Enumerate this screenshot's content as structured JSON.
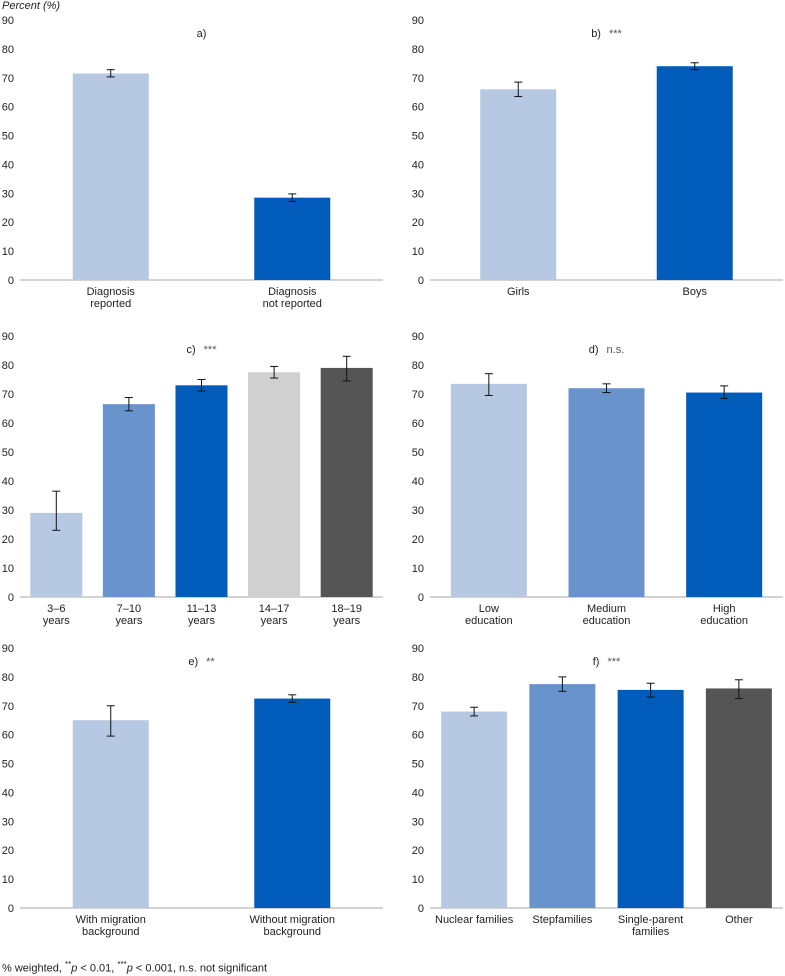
{
  "y_axis_title": "Percent (%)",
  "footnote": {
    "part1": "% weighted, ",
    "sup1": "**",
    "p1": "p",
    "part2": " < 0.01, ",
    "sup2": "***",
    "p2": "p",
    "part3": " < 0.001, n.s. not significant"
  },
  "colors": {
    "light_blue": "#b7c8e2",
    "mid_blue": "#6893cc",
    "dark_blue": "#005bbb",
    "light_gray": "#d0d0d0",
    "dark_gray": "#555555",
    "axis": "#a6a6a6",
    "text": "#222222"
  },
  "chart_data": [
    {
      "panel": "a",
      "type": "bar",
      "label": "a)",
      "significance": "",
      "ylim": [
        0,
        90
      ],
      "yticks": [
        0,
        10,
        20,
        30,
        40,
        50,
        60,
        70,
        80,
        90
      ],
      "categories": [
        [
          "Diagnosis",
          "reported"
        ],
        [
          "Diagnosis",
          "not reported"
        ]
      ],
      "values": [
        71.5,
        28.5
      ],
      "errors": [
        [
          70.3,
          72.8
        ],
        [
          27.2,
          29.8
        ]
      ],
      "colors": [
        "light_blue",
        "dark_blue"
      ]
    },
    {
      "panel": "b",
      "type": "bar",
      "label": "b)",
      "significance": "***",
      "ylim": [
        0,
        90
      ],
      "yticks": [
        0,
        10,
        20,
        30,
        40,
        50,
        60,
        70,
        80,
        90
      ],
      "categories": [
        [
          "Girls"
        ],
        [
          "Boys"
        ]
      ],
      "values": [
        66,
        74
      ],
      "errors": [
        [
          63.5,
          68.5
        ],
        [
          72.8,
          75.2
        ]
      ],
      "colors": [
        "light_blue",
        "dark_blue"
      ]
    },
    {
      "panel": "c",
      "type": "bar",
      "label": "c)",
      "significance": "***",
      "ylim": [
        0,
        90
      ],
      "yticks": [
        0,
        10,
        20,
        30,
        40,
        50,
        60,
        70,
        80,
        90
      ],
      "categories": [
        [
          "3–6",
          "years"
        ],
        [
          "7–10",
          "years"
        ],
        [
          "11–13",
          "years"
        ],
        [
          "14–17",
          "years"
        ],
        [
          "18–19",
          "years"
        ]
      ],
      "values": [
        29,
        66.5,
        73,
        77.5,
        79
      ],
      "errors": [
        [
          23,
          36.5
        ],
        [
          64.2,
          68.8
        ],
        [
          71,
          75
        ],
        [
          75.5,
          79.5
        ],
        [
          74.5,
          83
        ]
      ],
      "colors": [
        "light_blue",
        "mid_blue",
        "dark_blue",
        "light_gray",
        "dark_gray"
      ]
    },
    {
      "panel": "d",
      "type": "bar",
      "label": "d)",
      "significance": "n.s.",
      "ylim": [
        0,
        90
      ],
      "yticks": [
        0,
        10,
        20,
        30,
        40,
        50,
        60,
        70,
        80,
        90
      ],
      "categories": [
        [
          "Low",
          "education"
        ],
        [
          "Medium",
          "education"
        ],
        [
          "High",
          "education"
        ]
      ],
      "values": [
        73.5,
        72,
        70.5
      ],
      "errors": [
        [
          69.5,
          77
        ],
        [
          70.5,
          73.5
        ],
        [
          68.5,
          72.8
        ]
      ],
      "colors": [
        "light_blue",
        "mid_blue",
        "dark_blue"
      ]
    },
    {
      "panel": "e",
      "type": "bar",
      "label": "e)",
      "significance": "**",
      "ylim": [
        0,
        90
      ],
      "yticks": [
        0,
        10,
        20,
        30,
        40,
        50,
        60,
        70,
        80,
        90
      ],
      "categories": [
        [
          "With migration",
          "background"
        ],
        [
          "Without migration",
          "background"
        ]
      ],
      "values": [
        65,
        72.5
      ],
      "errors": [
        [
          59.5,
          70
        ],
        [
          71.2,
          73.8
        ]
      ],
      "colors": [
        "light_blue",
        "dark_blue"
      ]
    },
    {
      "panel": "f",
      "type": "bar",
      "label": "f)",
      "significance": "***",
      "ylim": [
        0,
        90
      ],
      "yticks": [
        0,
        10,
        20,
        30,
        40,
        50,
        60,
        70,
        80,
        90
      ],
      "categories": [
        [
          "Nuclear families"
        ],
        [
          "Stepfamilies"
        ],
        [
          "Single-parent",
          "families"
        ],
        [
          "Other"
        ]
      ],
      "values": [
        68,
        77.5,
        75.5,
        76
      ],
      "errors": [
        [
          66.5,
          69.5
        ],
        [
          75,
          80
        ],
        [
          73,
          77.8
        ],
        [
          72.5,
          79
        ]
      ],
      "colors": [
        "light_blue",
        "mid_blue",
        "dark_blue",
        "dark_gray"
      ]
    }
  ]
}
